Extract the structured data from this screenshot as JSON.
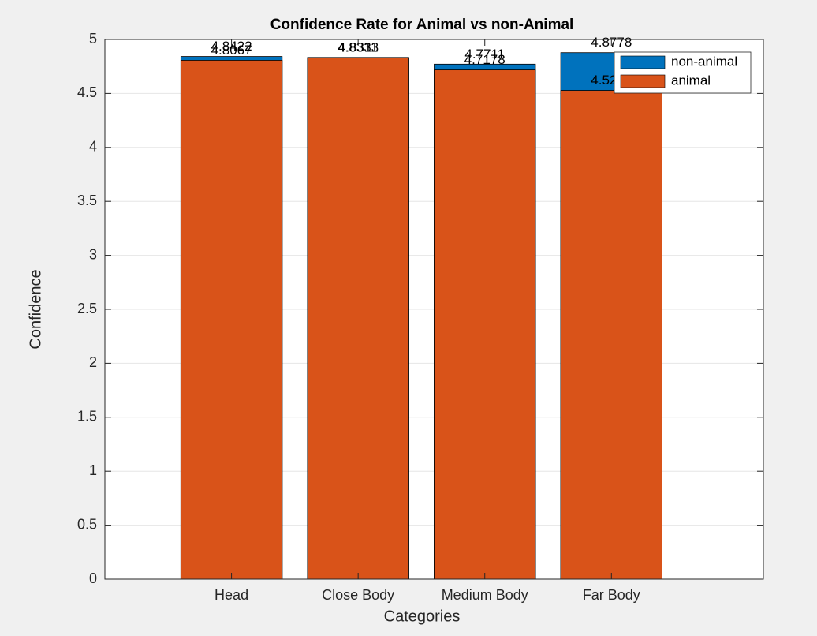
{
  "chart_data": {
    "type": "bar",
    "title": "Confidence Rate for Animal vs non-Animal",
    "x_label": "Categories",
    "y_label": "Confidence",
    "categories": [
      "Head",
      "Close Body",
      "Medium Body",
      "Far Body"
    ],
    "series": [
      {
        "name": "non-animal",
        "color": "#0072BD",
        "values": [
          4.8422,
          4.8333,
          4.7711,
          4.8778
        ]
      },
      {
        "name": "animal",
        "color": "#D95319",
        "values": [
          4.8067,
          4.8311,
          4.7178,
          4.5278
        ]
      }
    ],
    "ylim": [
      0,
      5
    ],
    "yticks": [
      0,
      0.5,
      1,
      1.5,
      2,
      2.5,
      3,
      3.5,
      4,
      4.5,
      5
    ],
    "grid": true,
    "legend": "northeast"
  }
}
